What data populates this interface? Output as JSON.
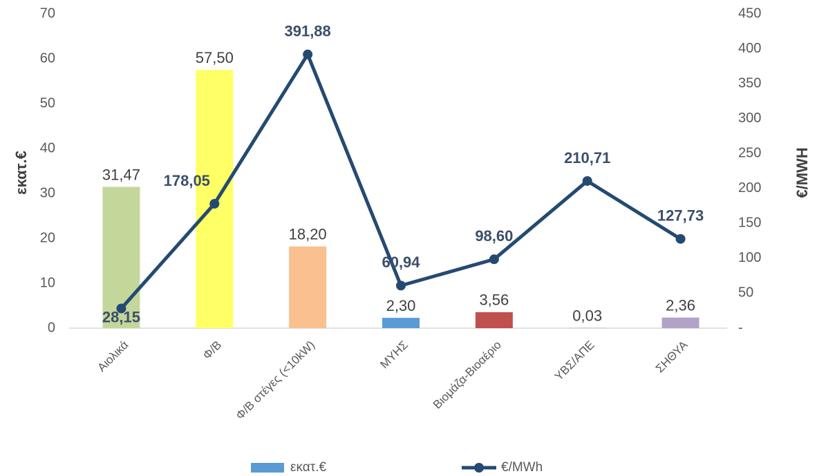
{
  "chart_data": {
    "type": "bar_line",
    "categories": [
      "Αιολικά",
      "Φ/Β",
      "Φ/Β στέγες (<10kW)",
      "ΜΥΗΣ",
      "Βιομάζα-Βιοαέριο",
      "ΥΒΣ/ΑΠΕ",
      "ΣΗΘΥΑ"
    ],
    "series": [
      {
        "name": "εκατ.€",
        "type": "bar",
        "color": "#5b9bd5",
        "colors": [
          "#c4d79b",
          "#ffff66",
          "#fac090",
          "#5b9bd5",
          "#c0504d",
          "#4bacc6",
          "#b3a2c7"
        ],
        "values": [
          31.47,
          57.5,
          18.2,
          2.3,
          3.56,
          0.03,
          2.36
        ],
        "value_labels": [
          "31,47",
          "57,50",
          "18,20",
          "2,30",
          "3,56",
          "0,03",
          "2,36"
        ]
      },
      {
        "name": "€/MWh",
        "type": "line",
        "axis": "y2",
        "color": "#254a72",
        "values": [
          28.15,
          178.05,
          391.88,
          60.94,
          98.6,
          210.71,
          127.73
        ],
        "value_labels": [
          "28,15",
          "178,05",
          "391,88",
          "60,94",
          "98,60",
          "210,71",
          "127,73"
        ]
      }
    ],
    "ylabel": "εκατ.€",
    "y2label": "€/MWH",
    "ylim": [
      0,
      70
    ],
    "yticks": [
      0,
      10,
      20,
      30,
      40,
      50,
      60,
      70
    ],
    "y2lim": [
      0,
      450
    ],
    "y2ticks": [
      {
        "value": 0,
        "label": "-"
      },
      50,
      100,
      150,
      200,
      250,
      300,
      350,
      400,
      450
    ],
    "legend": "bottom"
  }
}
